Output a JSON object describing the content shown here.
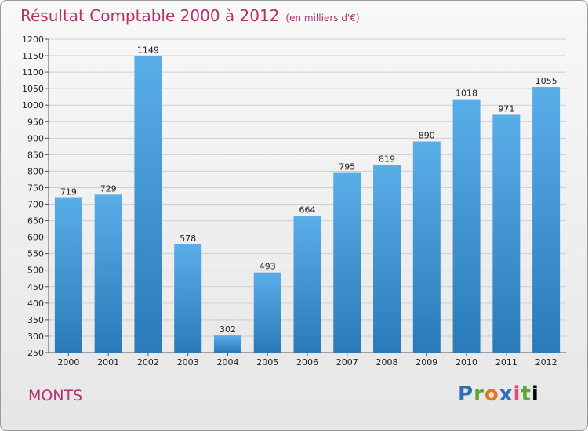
{
  "header": {
    "title": "Résultat Comptable 2000 à 2012",
    "unit": "(en milliers d'€)"
  },
  "commune": "MONTS",
  "logo": {
    "letters": [
      "P",
      "r",
      "o",
      "x",
      "i",
      "t",
      "i"
    ]
  },
  "colors": {
    "bar_top": "#5aaee8",
    "bar_bottom": "#2a7ab9",
    "title": "#b3326a"
  },
  "chart_data": {
    "type": "bar",
    "title": "Résultat Comptable 2000 à 2012",
    "xlabel": "",
    "ylabel": "",
    "categories": [
      "2000",
      "2001",
      "2002",
      "2003",
      "2004",
      "2005",
      "2006",
      "2007",
      "2008",
      "2009",
      "2010",
      "2011",
      "2012"
    ],
    "values": [
      719,
      729,
      1149,
      578,
      302,
      493,
      664,
      795,
      819,
      890,
      1018,
      971,
      1055
    ],
    "ylim": [
      250,
      1200
    ],
    "ytick_step": 50,
    "grid": true,
    "data_labels": true
  }
}
